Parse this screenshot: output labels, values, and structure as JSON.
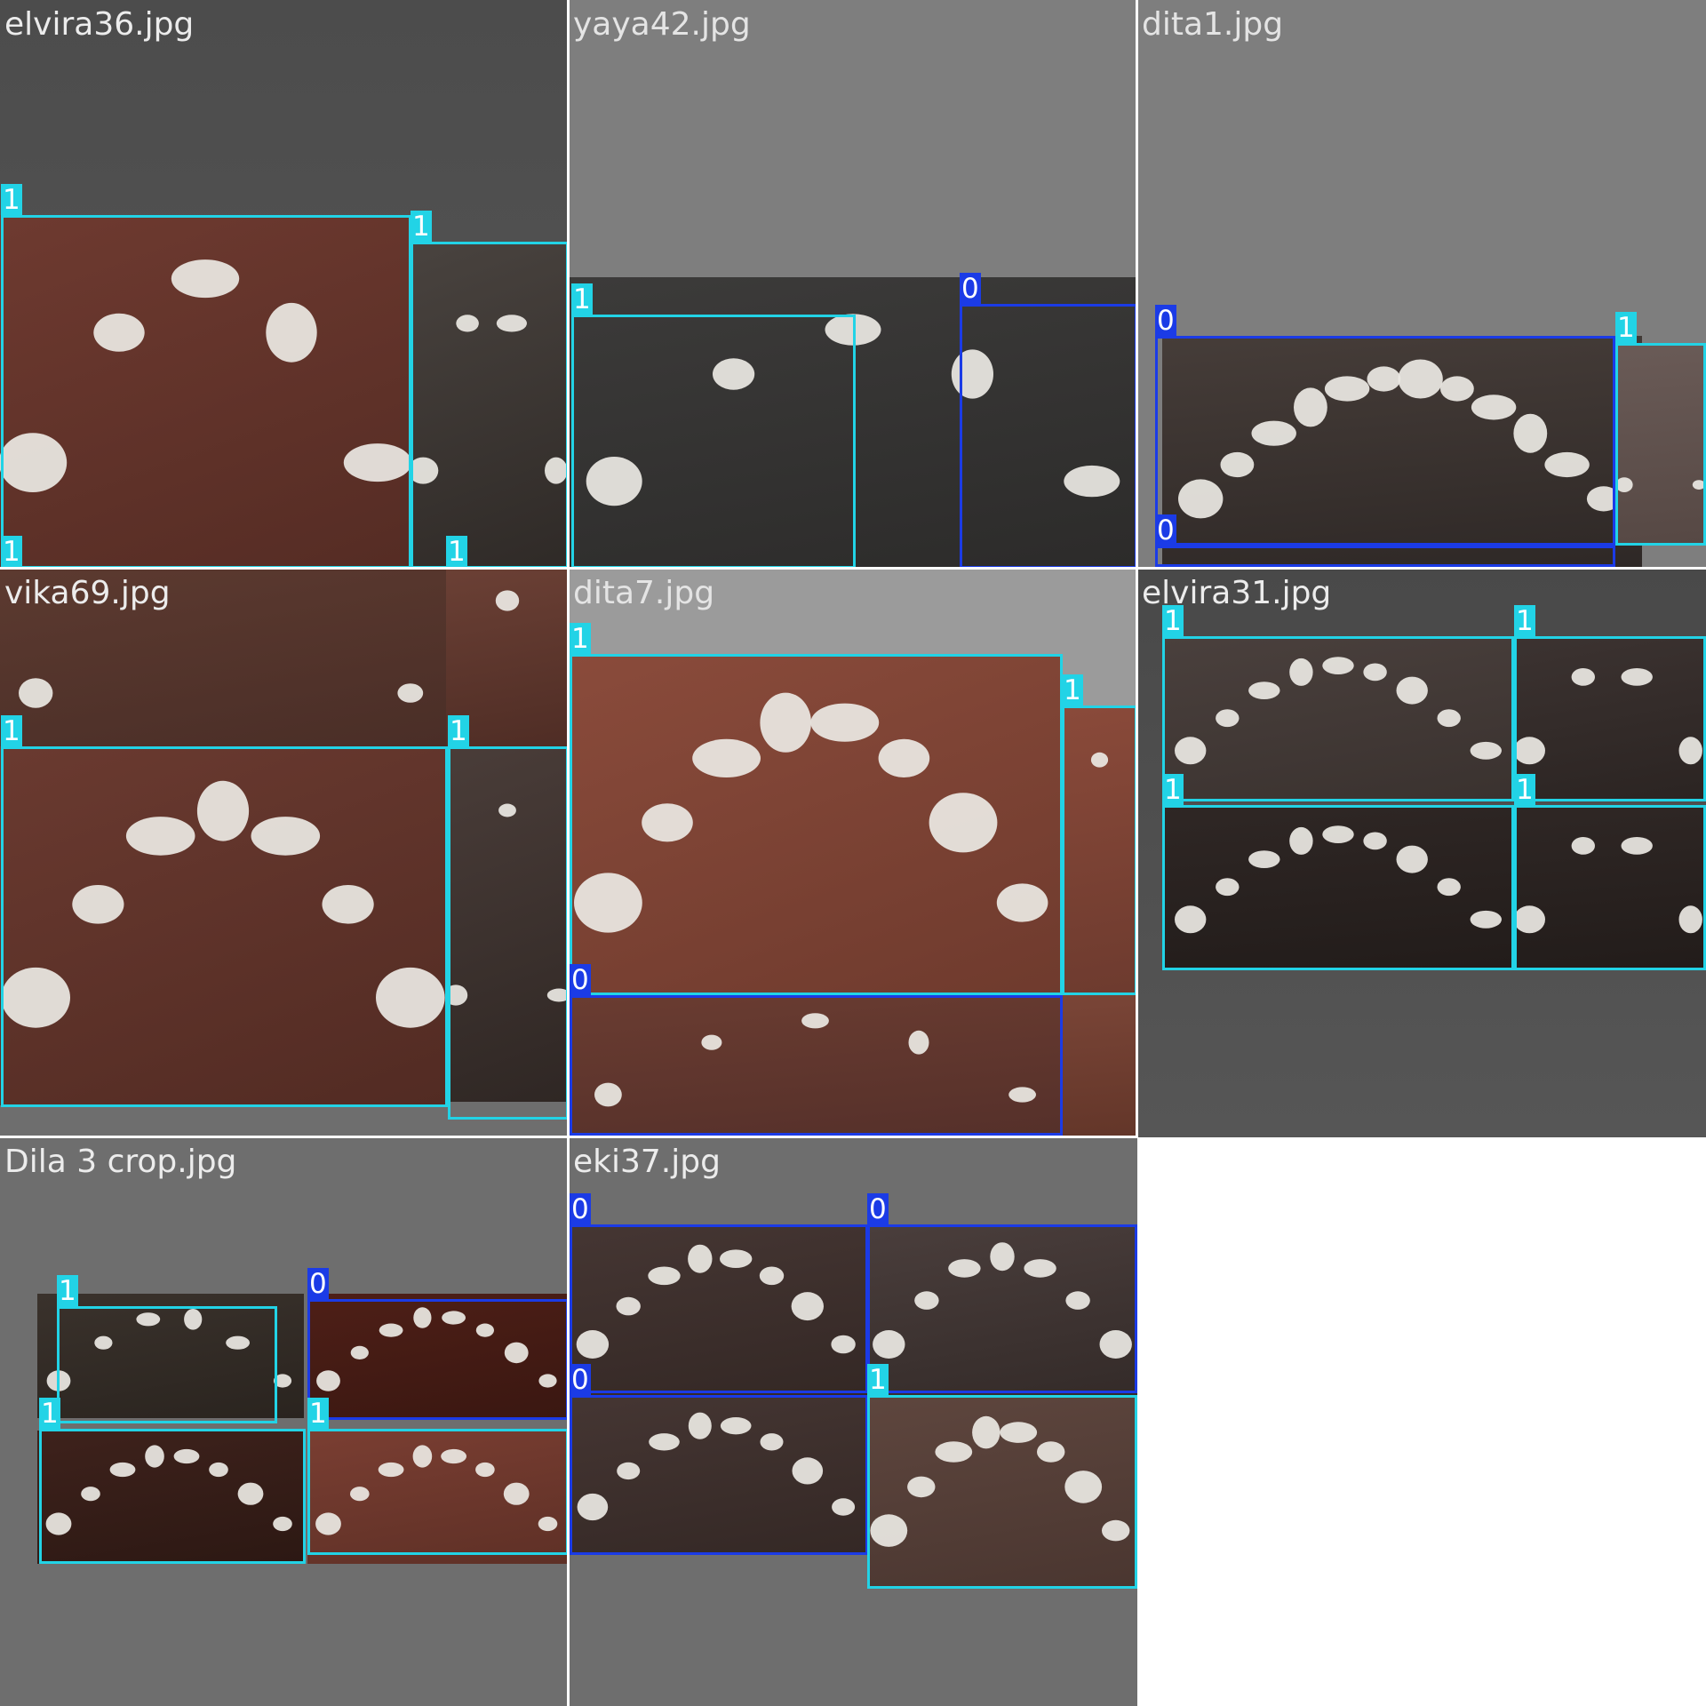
{
  "colors": {
    "class_0": "#1b3be6",
    "class_1": "#22d3e6",
    "label_text": "#ffffff",
    "grid_line": "#ffffff",
    "tooth_white": "#ece9e4"
  },
  "tiles": [
    {
      "filename": "elvira36.jpg",
      "label_color": "#ececec",
      "background": "linear-gradient(180deg,#4c4c4c 0%,#555555 100%)",
      "photos": [
        {
          "fill": "linear-gradient(160deg,#6e3a30,#552c24)",
          "spots": 5
        },
        {
          "fill": "linear-gradient(160deg,#49433f,#2f2a27)",
          "spots": 4
        }
      ],
      "detections": [
        {
          "label": "1",
          "class": 1
        },
        {
          "label": "1",
          "class": 1
        },
        {
          "label": "1",
          "class": 1
        },
        {
          "label": "1",
          "class": 1
        }
      ]
    },
    {
      "filename": "yaya42.jpg",
      "label_color": "#e4e4e4",
      "background": "#7e7e7e",
      "photos": [
        {
          "fill": "linear-gradient(170deg,#3c3b3a,#2c2b2a)",
          "spots": 5
        }
      ],
      "detections": [
        {
          "label": "1",
          "class": 1
        },
        {
          "label": "0",
          "class": 0
        }
      ]
    },
    {
      "filename": "dita1.jpg",
      "label_color": "#e4e4e4",
      "background": "#7e7e7e",
      "photos": [
        {
          "fill": "linear-gradient(175deg,#463d39,#2e2826)",
          "spots": 12
        },
        {
          "fill": "linear-gradient(175deg,#6a5b57,#564844)",
          "spots": 2
        }
      ],
      "detections": [
        {
          "label": "0",
          "class": 0
        },
        {
          "label": "1",
          "class": 1
        },
        {
          "label": "0",
          "class": 0
        }
      ]
    },
    {
      "filename": "vika69.jpg",
      "label_color": "#ececec",
      "background": "#6e6e6e",
      "photos": [
        {
          "fill": "linear-gradient(170deg,#5c3a30,#4a2e27)",
          "spots": 2
        },
        {
          "fill": "linear-gradient(170deg,#6b4035,#4f2d25)",
          "spots": 1
        },
        {
          "fill": "linear-gradient(160deg,#6a3a30,#522b23)",
          "spots": 7
        },
        {
          "fill": "linear-gradient(160deg,#4a3d39,#2f2724)",
          "spots": 3
        }
      ],
      "detections": [
        {
          "label": "1",
          "class": 1
        },
        {
          "label": "1",
          "class": 1
        }
      ]
    },
    {
      "filename": "dita7.jpg",
      "label_color": "#e4e4e4",
      "background": "#9b9b9b",
      "photos": [
        {
          "fill": "linear-gradient(160deg,#8a4b3b,#6e3a2d)",
          "spots": 8
        },
        {
          "fill": "linear-gradient(170deg,#8a4a3a,#6c3a2e)",
          "spots": 1
        },
        {
          "fill": "linear-gradient(175deg,#6a3c31,#55302a)",
          "spots": 5
        },
        {
          "fill": "linear-gradient(175deg,#7a4537,#633629)",
          "spots": 0
        }
      ],
      "detections": [
        {
          "label": "1",
          "class": 1
        },
        {
          "label": "1",
          "class": 1
        },
        {
          "label": "0",
          "class": 0
        }
      ]
    },
    {
      "filename": "elvira31.jpg",
      "label_color": "#ececec",
      "background": "linear-gradient(180deg,#494949 0%,#565656 100%)",
      "photos": [
        {
          "fill": "linear-gradient(170deg,#4a403d,#3a322f)",
          "spots": 9
        },
        {
          "fill": "linear-gradient(170deg,#3c3331,#2b2422)",
          "spots": 4
        },
        {
          "fill": "linear-gradient(175deg,#2f2725,#221c1a)",
          "spots": 9
        },
        {
          "fill": "linear-gradient(175deg,#2f2725,#221c1a)",
          "spots": 4
        }
      ],
      "detections": [
        {
          "label": "1",
          "class": 1
        },
        {
          "label": "1",
          "class": 1
        },
        {
          "label": "1",
          "class": 1
        },
        {
          "label": "1",
          "class": 1
        }
      ]
    },
    {
      "filename": "Dila 3 crop.jpg",
      "label_color": "#ececec",
      "background": "#6e6e6e",
      "photos": [
        {
          "fill": "linear-gradient(170deg,#3a322c,#2a241f)",
          "spots": 6
        },
        {
          "fill": "linear-gradient(170deg,#4e1f17,#3a1711)",
          "spots": 8
        },
        {
          "fill": "linear-gradient(170deg,#3e221c,#2c1813)",
          "spots": 8
        },
        {
          "fill": "linear-gradient(170deg,#7a3e32,#5e3026)",
          "spots": 8
        }
      ],
      "detections": [
        {
          "label": "1",
          "class": 1
        },
        {
          "label": "0",
          "class": 0
        },
        {
          "label": "1",
          "class": 1
        },
        {
          "label": "1",
          "class": 1
        }
      ]
    },
    {
      "filename": "eki37.jpg",
      "label_color": "#ececec",
      "background": "#6e6e6e",
      "photos": [
        {
          "fill": "linear-gradient(170deg,#453633,#342825)",
          "spots": 8
        },
        {
          "fill": "linear-gradient(170deg,#4a3e3c,#342b29)",
          "spots": 7
        },
        {
          "fill": "linear-gradient(170deg,#453633,#342825)",
          "spots": 8
        },
        {
          "fill": "linear-gradient(170deg,#5e463e,#4a3630)",
          "spots": 8
        }
      ],
      "detections": [
        {
          "label": "0",
          "class": 0
        },
        {
          "label": "0",
          "class": 0
        },
        {
          "label": "0",
          "class": 0
        },
        {
          "label": "1",
          "class": 1
        }
      ]
    }
  ]
}
